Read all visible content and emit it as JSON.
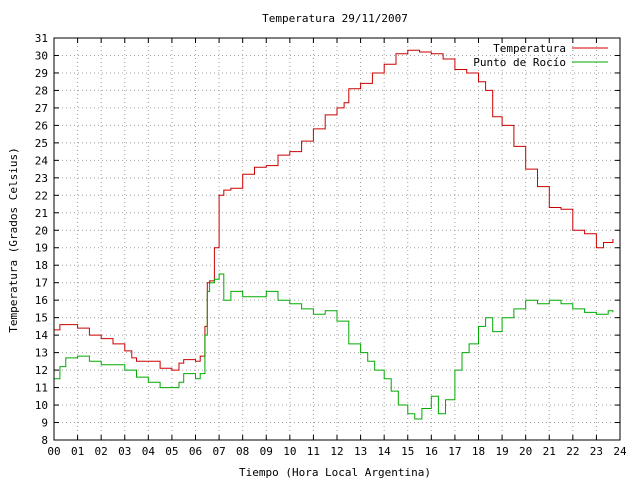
{
  "chart_data": {
    "type": "line",
    "title": "Temperatura 29/11/2007",
    "xlabel": "Tiempo (Hora Local Argentina)",
    "ylabel": "Temperatura (Grados Celsius)",
    "xlim": [
      0,
      24
    ],
    "ylim": [
      8,
      31
    ],
    "x_ticks": [
      "00",
      "01",
      "02",
      "03",
      "04",
      "05",
      "06",
      "07",
      "08",
      "09",
      "10",
      "11",
      "12",
      "13",
      "14",
      "15",
      "16",
      "17",
      "18",
      "19",
      "20",
      "21",
      "22",
      "23",
      "24"
    ],
    "y_ticks": [
      "8",
      "9",
      "10",
      "11",
      "12",
      "13",
      "14",
      "15",
      "16",
      "17",
      "18",
      "19",
      "20",
      "21",
      "22",
      "23",
      "24",
      "25",
      "26",
      "27",
      "28",
      "29",
      "30",
      "31"
    ],
    "grid": true,
    "legend_position": "top-right",
    "series": [
      {
        "name": "Temperatura",
        "color": "#cc0000",
        "x": [
          0.0,
          0.25,
          0.5,
          1.0,
          1.5,
          2.0,
          2.5,
          3.0,
          3.3,
          3.5,
          4.0,
          4.5,
          5.0,
          5.3,
          5.5,
          6.0,
          6.2,
          6.4,
          6.5,
          6.6,
          6.8,
          7.0,
          7.2,
          7.5,
          8.0,
          8.5,
          9.0,
          9.5,
          10.0,
          10.5,
          11.0,
          11.5,
          12.0,
          12.3,
          12.5,
          13.0,
          13.5,
          14.0,
          14.5,
          15.0,
          15.5,
          16.0,
          16.5,
          17.0,
          17.5,
          18.0,
          18.3,
          18.6,
          19.0,
          19.5,
          20.0,
          20.5,
          21.0,
          21.5,
          22.0,
          22.5,
          23.0,
          23.3,
          23.7
        ],
        "values": [
          14.3,
          14.6,
          14.6,
          14.4,
          14.0,
          13.8,
          13.5,
          13.1,
          12.7,
          12.5,
          12.5,
          12.1,
          12.0,
          12.4,
          12.6,
          12.5,
          12.8,
          14.5,
          17.0,
          17.1,
          19.0,
          22.0,
          22.3,
          22.4,
          23.2,
          23.6,
          23.7,
          24.3,
          24.5,
          25.1,
          25.8,
          26.6,
          27.0,
          27.3,
          28.1,
          28.4,
          29.0,
          29.5,
          30.1,
          30.3,
          30.2,
          30.1,
          29.8,
          29.2,
          29.0,
          28.5,
          28.0,
          26.5,
          26.0,
          24.8,
          23.5,
          22.5,
          21.3,
          21.2,
          20.0,
          19.8,
          19.0,
          19.3,
          19.5
        ]
      },
      {
        "name": "Punto de Rocío",
        "color": "#00aa00",
        "x": [
          0.0,
          0.25,
          0.5,
          1.0,
          1.5,
          2.0,
          2.5,
          3.0,
          3.5,
          4.0,
          4.5,
          5.0,
          5.3,
          5.5,
          6.0,
          6.2,
          6.4,
          6.5,
          6.6,
          6.8,
          7.0,
          7.2,
          7.5,
          8.0,
          8.5,
          9.0,
          9.5,
          10.0,
          10.5,
          11.0,
          11.5,
          12.0,
          12.5,
          13.0,
          13.3,
          13.6,
          14.0,
          14.3,
          14.6,
          15.0,
          15.3,
          15.6,
          16.0,
          16.3,
          16.6,
          17.0,
          17.3,
          17.6,
          18.0,
          18.3,
          18.6,
          19.0,
          19.5,
          20.0,
          20.5,
          21.0,
          21.5,
          22.0,
          22.5,
          23.0,
          23.5,
          23.7
        ],
        "values": [
          11.5,
          12.2,
          12.7,
          12.8,
          12.5,
          12.3,
          12.3,
          12.0,
          11.6,
          11.3,
          11.0,
          11.0,
          11.3,
          11.8,
          11.5,
          11.8,
          14.0,
          16.5,
          17.0,
          17.2,
          17.5,
          16.0,
          16.5,
          16.2,
          16.2,
          16.5,
          16.0,
          15.8,
          15.5,
          15.2,
          15.4,
          14.8,
          13.5,
          13.0,
          12.5,
          12.0,
          11.5,
          10.8,
          10.0,
          9.5,
          9.2,
          9.8,
          10.5,
          9.5,
          10.3,
          12.0,
          13.0,
          13.5,
          14.5,
          15.0,
          14.2,
          15.0,
          15.5,
          16.0,
          15.8,
          16.0,
          15.8,
          15.5,
          15.3,
          15.2,
          15.4,
          15.3
        ]
      }
    ]
  }
}
